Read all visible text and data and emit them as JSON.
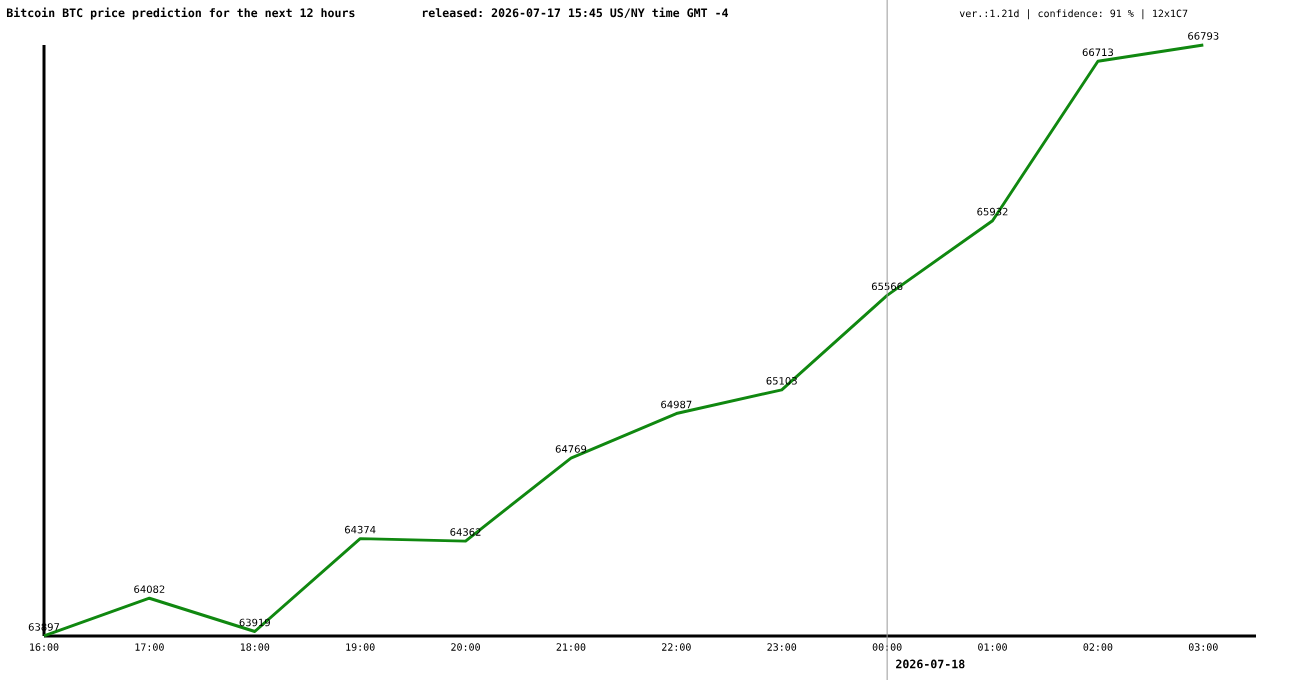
{
  "chart_data": {
    "type": "line",
    "title": "Bitcoin BTC price prediction for the next 12 hours",
    "subtitle": "released: 2026-07-17 15:45 US/NY time GMT -4",
    "annotations": [
      "ver.:1.21d | confidence: 91 % | 12x1C7"
    ],
    "x": [
      "2026-07-17T16:00",
      "2026-07-17T17:00",
      "2026-07-17T18:00",
      "2026-07-17T19:00",
      "2026-07-17T20:00",
      "2026-07-17T21:00",
      "2026-07-17T22:00",
      "2026-07-17T23:00",
      "2026-07-18T00:00",
      "2026-07-18T01:00",
      "2026-07-18T02:00",
      "2026-07-18T03:00"
    ],
    "values": [
      63897,
      64082,
      63919,
      64374,
      64362,
      64769,
      64987,
      65103,
      65566,
      65932,
      66713,
      66793
    ],
    "color": "#108810",
    "marker": "none",
    "line_style": "solid",
    "data_labels": true,
    "xlim": [
      "2026-07-17T16:00",
      "2026-07-18T03:30"
    ],
    "xticks": [
      {
        "value": "2026-07-17T16:00",
        "label": "16:00"
      },
      {
        "value": "2026-07-17T17:00",
        "label": "17:00"
      },
      {
        "value": "2026-07-17T18:00",
        "label": "18:00"
      },
      {
        "value": "2026-07-17T19:00",
        "label": "19:00"
      },
      {
        "value": "2026-07-17T20:00",
        "label": "20:00"
      },
      {
        "value": "2026-07-17T21:00",
        "label": "21:00"
      },
      {
        "value": "2026-07-17T22:00",
        "label": "22:00"
      },
      {
        "value": "2026-07-17T23:00",
        "label": "23:00"
      },
      {
        "value": "2026-07-18T00:00",
        "label": "00:00"
      },
      {
        "value": "2026-07-18T01:00",
        "label": "01:00"
      },
      {
        "value": "2026-07-18T02:00",
        "label": "02:00"
      },
      {
        "value": "2026-07-18T03:00",
        "label": "03:00"
      }
    ],
    "ylim": [
      63897,
      66793
    ],
    "tick_labels": "x",
    "ref_lines": [
      {
        "axis": "x",
        "value": "2026-07-18T00:00",
        "label": "2026-07-18",
        "color": "#999999"
      }
    ]
  }
}
